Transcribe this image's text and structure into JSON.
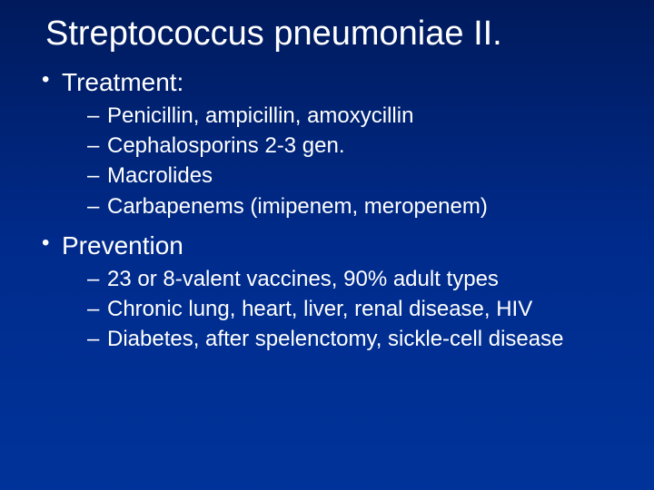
{
  "slide": {
    "title": "Streptococcus pneumoniae II.",
    "background_gradient_top": "#001a5c",
    "background_gradient_mid": "#002b8c",
    "background_gradient_bottom": "#003399",
    "text_color": "#ffffff",
    "title_fontsize": 38,
    "level1_fontsize": 28,
    "level2_fontsize": 24,
    "font_family": "Arial",
    "sections": [
      {
        "heading": "Treatment:",
        "items": [
          "Penicillin, ampicillin, amoxycillin",
          "Cephalosporins 2-3 gen.",
          "Macrolides",
          "Carbapenems (imipenem, meropenem)"
        ]
      },
      {
        "heading": "Prevention",
        "items": [
          "23 or 8-valent vaccines, 90% adult types",
          "Chronic lung, heart, liver, renal disease, HIV",
          "Diabetes, after spelenctomy, sickle-cell disease"
        ]
      }
    ]
  }
}
